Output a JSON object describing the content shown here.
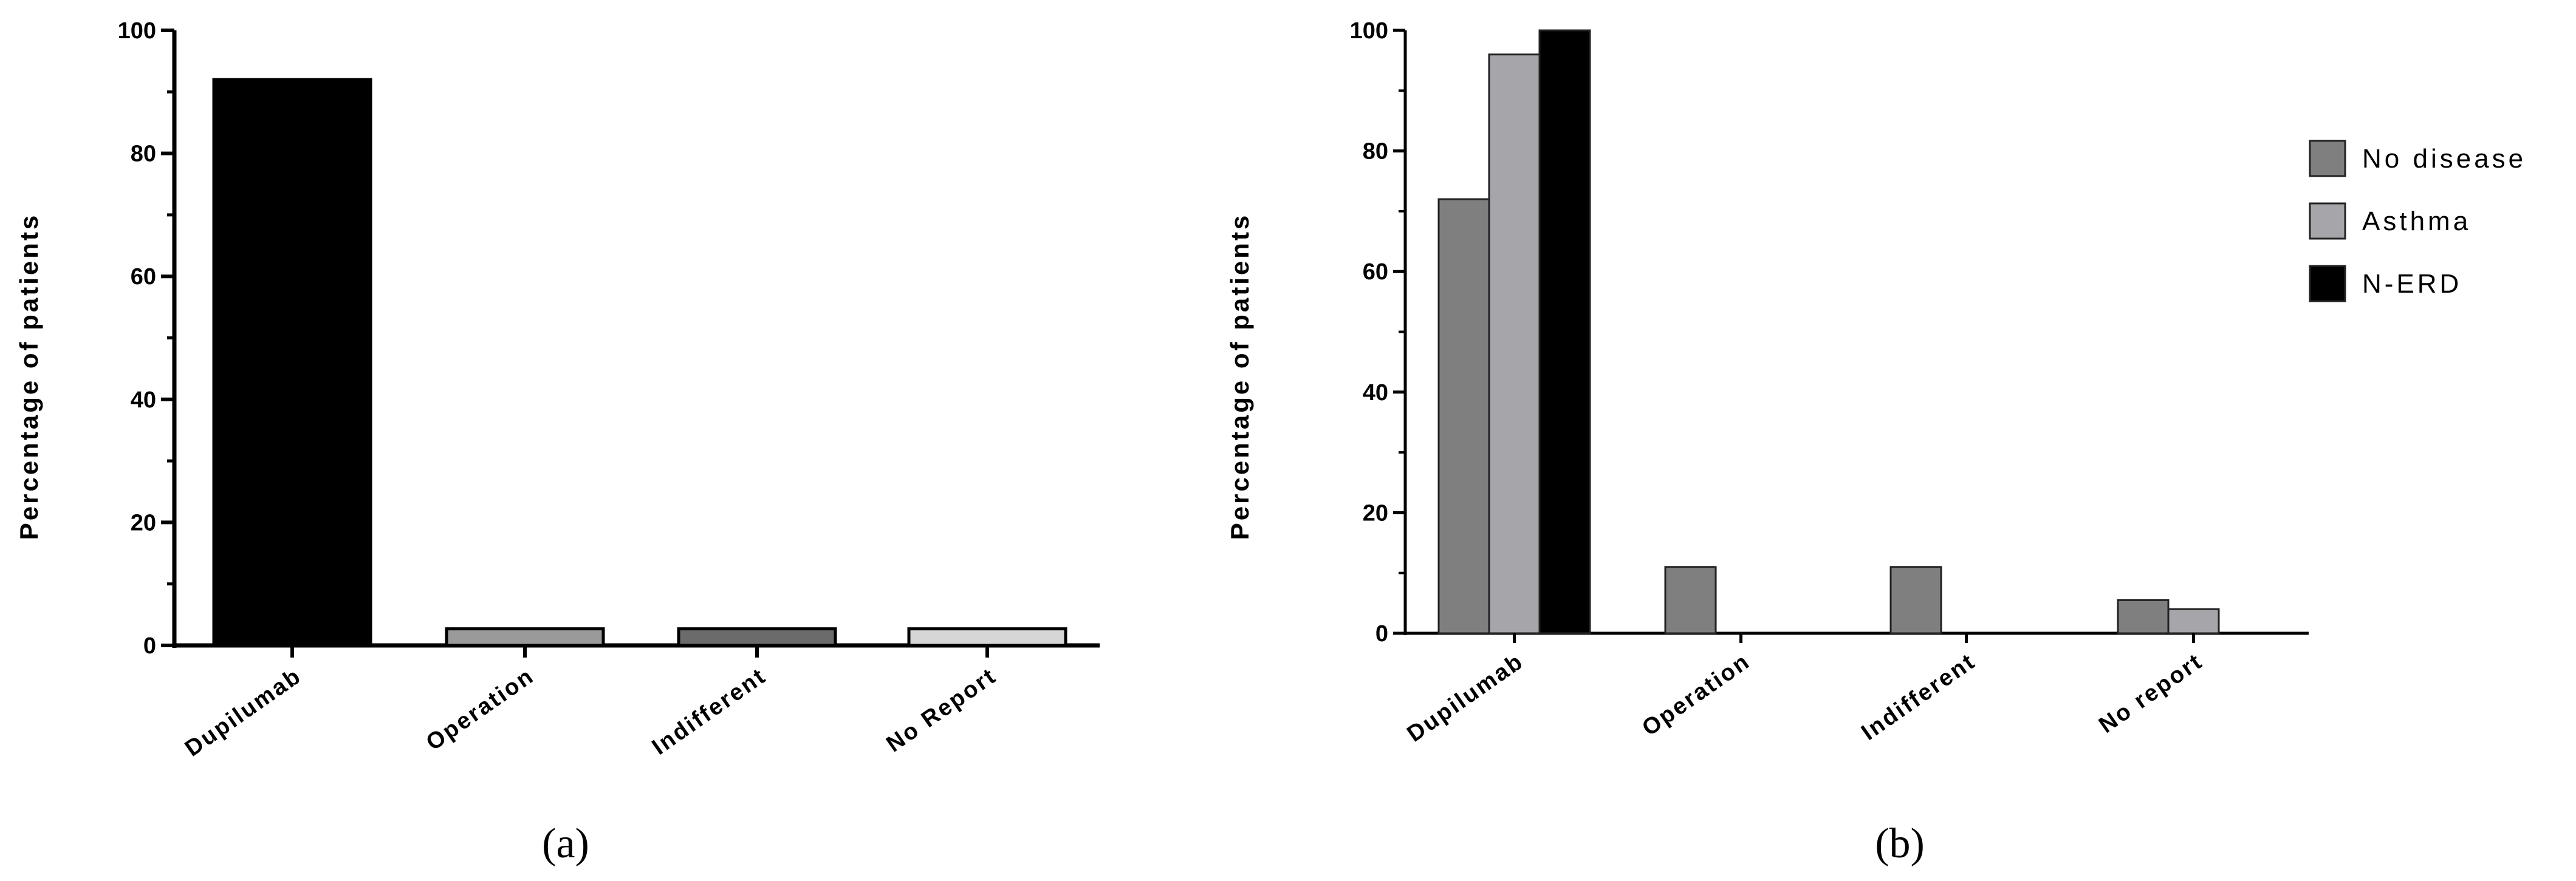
{
  "chart_data": [
    {
      "type": "bar",
      "panel_label": "(a)",
      "ylabel": "Percentage of patients",
      "ylim": [
        0,
        100
      ],
      "yticks": [
        0,
        20,
        40,
        60,
        80,
        100
      ],
      "categories": [
        "Dupilumab",
        "Operation",
        "Indifferent",
        "No Report"
      ],
      "values": [
        92,
        2.7,
        2.7,
        2.7
      ],
      "colors": [
        "#000000",
        "#9a9a9a",
        "#6b6b6b",
        "#d6d6d6"
      ],
      "legend": "none",
      "grid": false
    },
    {
      "type": "bar",
      "panel_label": "(b)",
      "ylabel": "Percentage of patients",
      "ylim": [
        0,
        100
      ],
      "yticks": [
        0,
        20,
        40,
        60,
        80,
        100
      ],
      "categories": [
        "Dupilumab",
        "Operation",
        "Indifferent",
        "No report"
      ],
      "series": [
        {
          "name": "No disease",
          "values": [
            72,
            11,
            11,
            5.5
          ],
          "color": "#7f7f7f"
        },
        {
          "name": "Asthma",
          "values": [
            96,
            0,
            0,
            4
          ],
          "color": "#a6a6aa"
        },
        {
          "name": "N-ERD",
          "values": [
            100,
            0,
            0,
            0
          ],
          "color": "#000000"
        }
      ],
      "legend": "right",
      "grid": false
    }
  ]
}
